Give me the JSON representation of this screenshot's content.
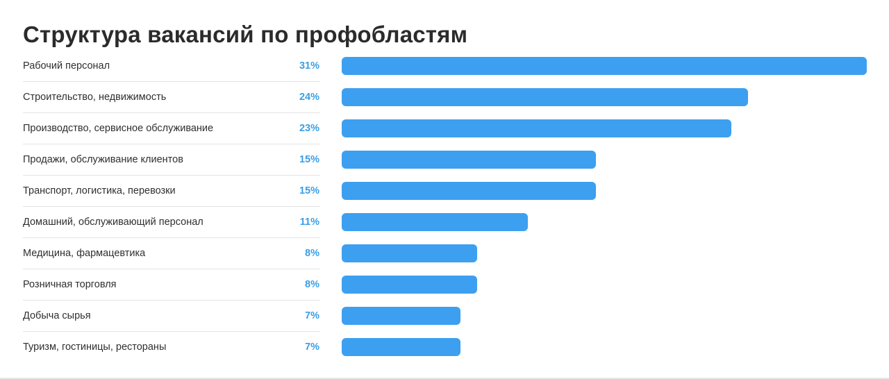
{
  "chart_data": {
    "type": "bar",
    "orientation": "horizontal",
    "title": "Структура вакансий по профобластям",
    "categories": [
      "Рабочий персонал",
      "Строительство, недвижимость",
      "Производство, сервисное обслуживание",
      "Продажи, обслуживание клиентов",
      "Транспорт, логистика, перевозки",
      "Домашний, обслуживающий персонал",
      "Медицина, фармацевтика",
      "Розничная торговля",
      "Добыча сырья",
      "Туризм, гостиницы, рестораны"
    ],
    "values": [
      31,
      24,
      23,
      15,
      15,
      11,
      8,
      8,
      7,
      7
    ],
    "value_labels": [
      "31%",
      "24%",
      "23%",
      "15%",
      "15%",
      "11%",
      "8%",
      "8%",
      "7%",
      "7%"
    ],
    "xlim": [
      0,
      31
    ],
    "grid": false,
    "legend": "none"
  },
  "colors": {
    "bar": "#3d9ff0",
    "percent_text": "#3a9ee6",
    "label_text": "#2f2f2f",
    "title_text": "#2b2b2b",
    "divider": "#e3e3e3"
  }
}
